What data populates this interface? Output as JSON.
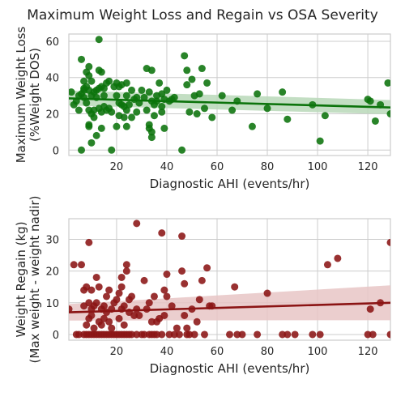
{
  "figure": {
    "title": "Maximum Weight Loss and Regain vs OSA Severity"
  },
  "chart_data": [
    {
      "type": "scatter",
      "xlabel": "Diagnostic AHI (events/hr)",
      "ylabel": [
        "Maximum Weight Loss",
        "(%Weight DOS)"
      ],
      "xlim": [
        1,
        129
      ],
      "ylim": [
        -3,
        64
      ],
      "xticks": [
        "20",
        "40",
        "60",
        "80",
        "100",
        "120"
      ],
      "yticks": [
        "0",
        "20",
        "40",
        "60"
      ],
      "grid": true,
      "color": "#0b730b",
      "band_color": "#b8d8b8",
      "regression": {
        "x": [
          1,
          129
        ],
        "y": [
          28.5,
          23.5
        ],
        "ci_lower": [
          24.6,
          19.8
        ],
        "ci_upper": [
          32.8,
          27.6
        ]
      },
      "points": [
        [
          2,
          32
        ],
        [
          3,
          25
        ],
        [
          4,
          27
        ],
        [
          5,
          30
        ],
        [
          5,
          22
        ],
        [
          6,
          50
        ],
        [
          6,
          31
        ],
        [
          6,
          0
        ],
        [
          7,
          38
        ],
        [
          7,
          34
        ],
        [
          7,
          33
        ],
        [
          7,
          29
        ],
        [
          8,
          43
        ],
        [
          8,
          35
        ],
        [
          8,
          26
        ],
        [
          9,
          46
        ],
        [
          9,
          41
        ],
        [
          9,
          33
        ],
        [
          9,
          22
        ],
        [
          9,
          14
        ],
        [
          9,
          13
        ],
        [
          10,
          38
        ],
        [
          10,
          30
        ],
        [
          10,
          20
        ],
        [
          10,
          4
        ],
        [
          11,
          32
        ],
        [
          11,
          22
        ],
        [
          11,
          18
        ],
        [
          12,
          33
        ],
        [
          12,
          29
        ],
        [
          12,
          8
        ],
        [
          13,
          61
        ],
        [
          13,
          44
        ],
        [
          13,
          34
        ],
        [
          13,
          23
        ],
        [
          14,
          43
        ],
        [
          14,
          35
        ],
        [
          14,
          21
        ],
        [
          14,
          12
        ],
        [
          15,
          34
        ],
        [
          15,
          30
        ],
        [
          15,
          24
        ],
        [
          16,
          37
        ],
        [
          16,
          22
        ],
        [
          17,
          38
        ],
        [
          17,
          23
        ],
        [
          18,
          0
        ],
        [
          18,
          21
        ],
        [
          19,
          35
        ],
        [
          20,
          37
        ],
        [
          20,
          30
        ],
        [
          20,
          13
        ],
        [
          21,
          35
        ],
        [
          21,
          26
        ],
        [
          21,
          19
        ],
        [
          22,
          36
        ],
        [
          22,
          25
        ],
        [
          23,
          24
        ],
        [
          23,
          18
        ],
        [
          24,
          37
        ],
        [
          24,
          30
        ],
        [
          24,
          22
        ],
        [
          24,
          13
        ],
        [
          25,
          25
        ],
        [
          26,
          33
        ],
        [
          26,
          18
        ],
        [
          27,
          28
        ],
        [
          28,
          29
        ],
        [
          28,
          21
        ],
        [
          29,
          26
        ],
        [
          30,
          33
        ],
        [
          31,
          29
        ],
        [
          32,
          45
        ],
        [
          32,
          22
        ],
        [
          33,
          32
        ],
        [
          33,
          14
        ],
        [
          33,
          12
        ],
        [
          34,
          44
        ],
        [
          34,
          27
        ],
        [
          34,
          10
        ],
        [
          34,
          7
        ],
        [
          35,
          25
        ],
        [
          35,
          19
        ],
        [
          36,
          30
        ],
        [
          36,
          27
        ],
        [
          37,
          37
        ],
        [
          38,
          31
        ],
        [
          38,
          24
        ],
        [
          38,
          21
        ],
        [
          39,
          28
        ],
        [
          39,
          12
        ],
        [
          40,
          33
        ],
        [
          41,
          27
        ],
        [
          42,
          28
        ],
        [
          43,
          29
        ],
        [
          46,
          0
        ],
        [
          47,
          52
        ],
        [
          48,
          44
        ],
        [
          48,
          36
        ],
        [
          49,
          21
        ],
        [
          50,
          39
        ],
        [
          51,
          30
        ],
        [
          52,
          20
        ],
        [
          53,
          31
        ],
        [
          54,
          45
        ],
        [
          55,
          23
        ],
        [
          56,
          37
        ],
        [
          58,
          18
        ],
        [
          62,
          30
        ],
        [
          66,
          22
        ],
        [
          68,
          27
        ],
        [
          74,
          13
        ],
        [
          76,
          31
        ],
        [
          80,
          23
        ],
        [
          86,
          32
        ],
        [
          88,
          17
        ],
        [
          98,
          25
        ],
        [
          101,
          5
        ],
        [
          103,
          19
        ],
        [
          120,
          28
        ],
        [
          121,
          27
        ],
        [
          123,
          16
        ],
        [
          125,
          25
        ],
        [
          128,
          37
        ],
        [
          129,
          20
        ]
      ]
    },
    {
      "type": "scatter",
      "xlabel": "Diagnostic AHI (events/hr)",
      "ylabel": [
        "Weight Regain (kg)",
        "(Max weight - weight nadir)"
      ],
      "xlim": [
        1,
        129
      ],
      "ylim": [
        -1.8,
        36.5
      ],
      "xticks": [
        "20",
        "40",
        "60",
        "80",
        "100",
        "120"
      ],
      "yticks": [
        "0",
        "10",
        "20",
        "30"
      ],
      "grid": true,
      "color": "#8b1414",
      "band_color": "#e8c6c6",
      "regression": {
        "x": [
          1,
          129
        ],
        "y": [
          7.0,
          10.0
        ],
        "ci_lower": [
          4.4,
          4.5
        ],
        "ci_upper": [
          9.6,
          15.5
        ]
      },
      "points": [
        [
          1,
          8
        ],
        [
          3,
          22
        ],
        [
          4,
          0
        ],
        [
          5,
          0
        ],
        [
          6,
          22
        ],
        [
          7,
          0
        ],
        [
          7,
          9
        ],
        [
          7,
          14
        ],
        [
          8,
          15
        ],
        [
          8,
          0
        ],
        [
          8,
          3
        ],
        [
          9,
          0
        ],
        [
          9,
          5
        ],
        [
          9,
          10
        ],
        [
          9,
          29
        ],
        [
          10,
          0
        ],
        [
          10,
          8
        ],
        [
          10,
          6
        ],
        [
          10,
          14
        ],
        [
          11,
          0
        ],
        [
          11,
          2
        ],
        [
          11,
          9
        ],
        [
          12,
          0
        ],
        [
          12,
          18
        ],
        [
          12,
          10
        ],
        [
          13,
          0
        ],
        [
          13,
          4
        ],
        [
          13,
          15
        ],
        [
          14,
          0
        ],
        [
          14,
          3
        ],
        [
          14,
          8
        ],
        [
          15,
          0
        ],
        [
          15,
          5
        ],
        [
          15,
          9
        ],
        [
          16,
          0
        ],
        [
          16,
          12
        ],
        [
          16,
          7
        ],
        [
          17,
          0
        ],
        [
          17,
          14
        ],
        [
          17,
          4
        ],
        [
          18,
          0
        ],
        [
          18,
          8
        ],
        [
          18,
          2
        ],
        [
          19,
          0
        ],
        [
          19,
          10
        ],
        [
          20,
          0
        ],
        [
          20,
          11
        ],
        [
          21,
          0
        ],
        [
          21,
          5
        ],
        [
          21,
          13
        ],
        [
          22,
          0
        ],
        [
          22,
          8
        ],
        [
          22,
          15
        ],
        [
          22,
          18
        ],
        [
          23,
          0
        ],
        [
          23,
          3
        ],
        [
          23,
          9
        ],
        [
          24,
          0
        ],
        [
          24,
          20
        ],
        [
          24,
          22
        ],
        [
          25,
          0
        ],
        [
          25,
          11
        ],
        [
          25,
          7
        ],
        [
          26,
          0
        ],
        [
          26,
          12
        ],
        [
          27,
          6
        ],
        [
          28,
          0
        ],
        [
          28,
          8
        ],
        [
          28,
          35
        ],
        [
          29,
          6
        ],
        [
          30,
          0
        ],
        [
          31,
          0
        ],
        [
          31,
          17
        ],
        [
          32,
          8
        ],
        [
          33,
          0
        ],
        [
          33,
          10
        ],
        [
          34,
          0
        ],
        [
          34,
          4
        ],
        [
          35,
          12
        ],
        [
          35,
          0
        ],
        [
          36,
          0
        ],
        [
          36,
          4
        ],
        [
          37,
          5
        ],
        [
          38,
          32
        ],
        [
          38,
          0
        ],
        [
          39,
          14
        ],
        [
          39,
          6
        ],
        [
          40,
          19
        ],
        [
          40,
          12
        ],
        [
          41,
          0
        ],
        [
          42,
          9
        ],
        [
          43,
          0
        ],
        [
          44,
          2
        ],
        [
          45,
          0
        ],
        [
          46,
          20
        ],
        [
          46,
          31
        ],
        [
          47,
          16
        ],
        [
          47,
          6
        ],
        [
          48,
          0
        ],
        [
          48,
          2
        ],
        [
          49,
          0
        ],
        [
          50,
          8
        ],
        [
          51,
          0
        ],
        [
          52,
          4
        ],
        [
          53,
          11
        ],
        [
          54,
          17
        ],
        [
          55,
          0
        ],
        [
          56,
          21
        ],
        [
          57,
          9
        ],
        [
          58,
          9
        ],
        [
          65,
          0
        ],
        [
          67,
          15
        ],
        [
          68,
          0
        ],
        [
          70,
          0
        ],
        [
          76,
          0
        ],
        [
          80,
          13
        ],
        [
          86,
          0
        ],
        [
          88,
          0
        ],
        [
          91,
          0
        ],
        [
          98,
          0
        ],
        [
          101,
          0
        ],
        [
          104,
          22
        ],
        [
          108,
          24
        ],
        [
          120,
          0
        ],
        [
          121,
          8
        ],
        [
          122,
          0
        ],
        [
          125,
          10
        ],
        [
          129,
          29
        ],
        [
          129,
          0
        ]
      ]
    }
  ]
}
